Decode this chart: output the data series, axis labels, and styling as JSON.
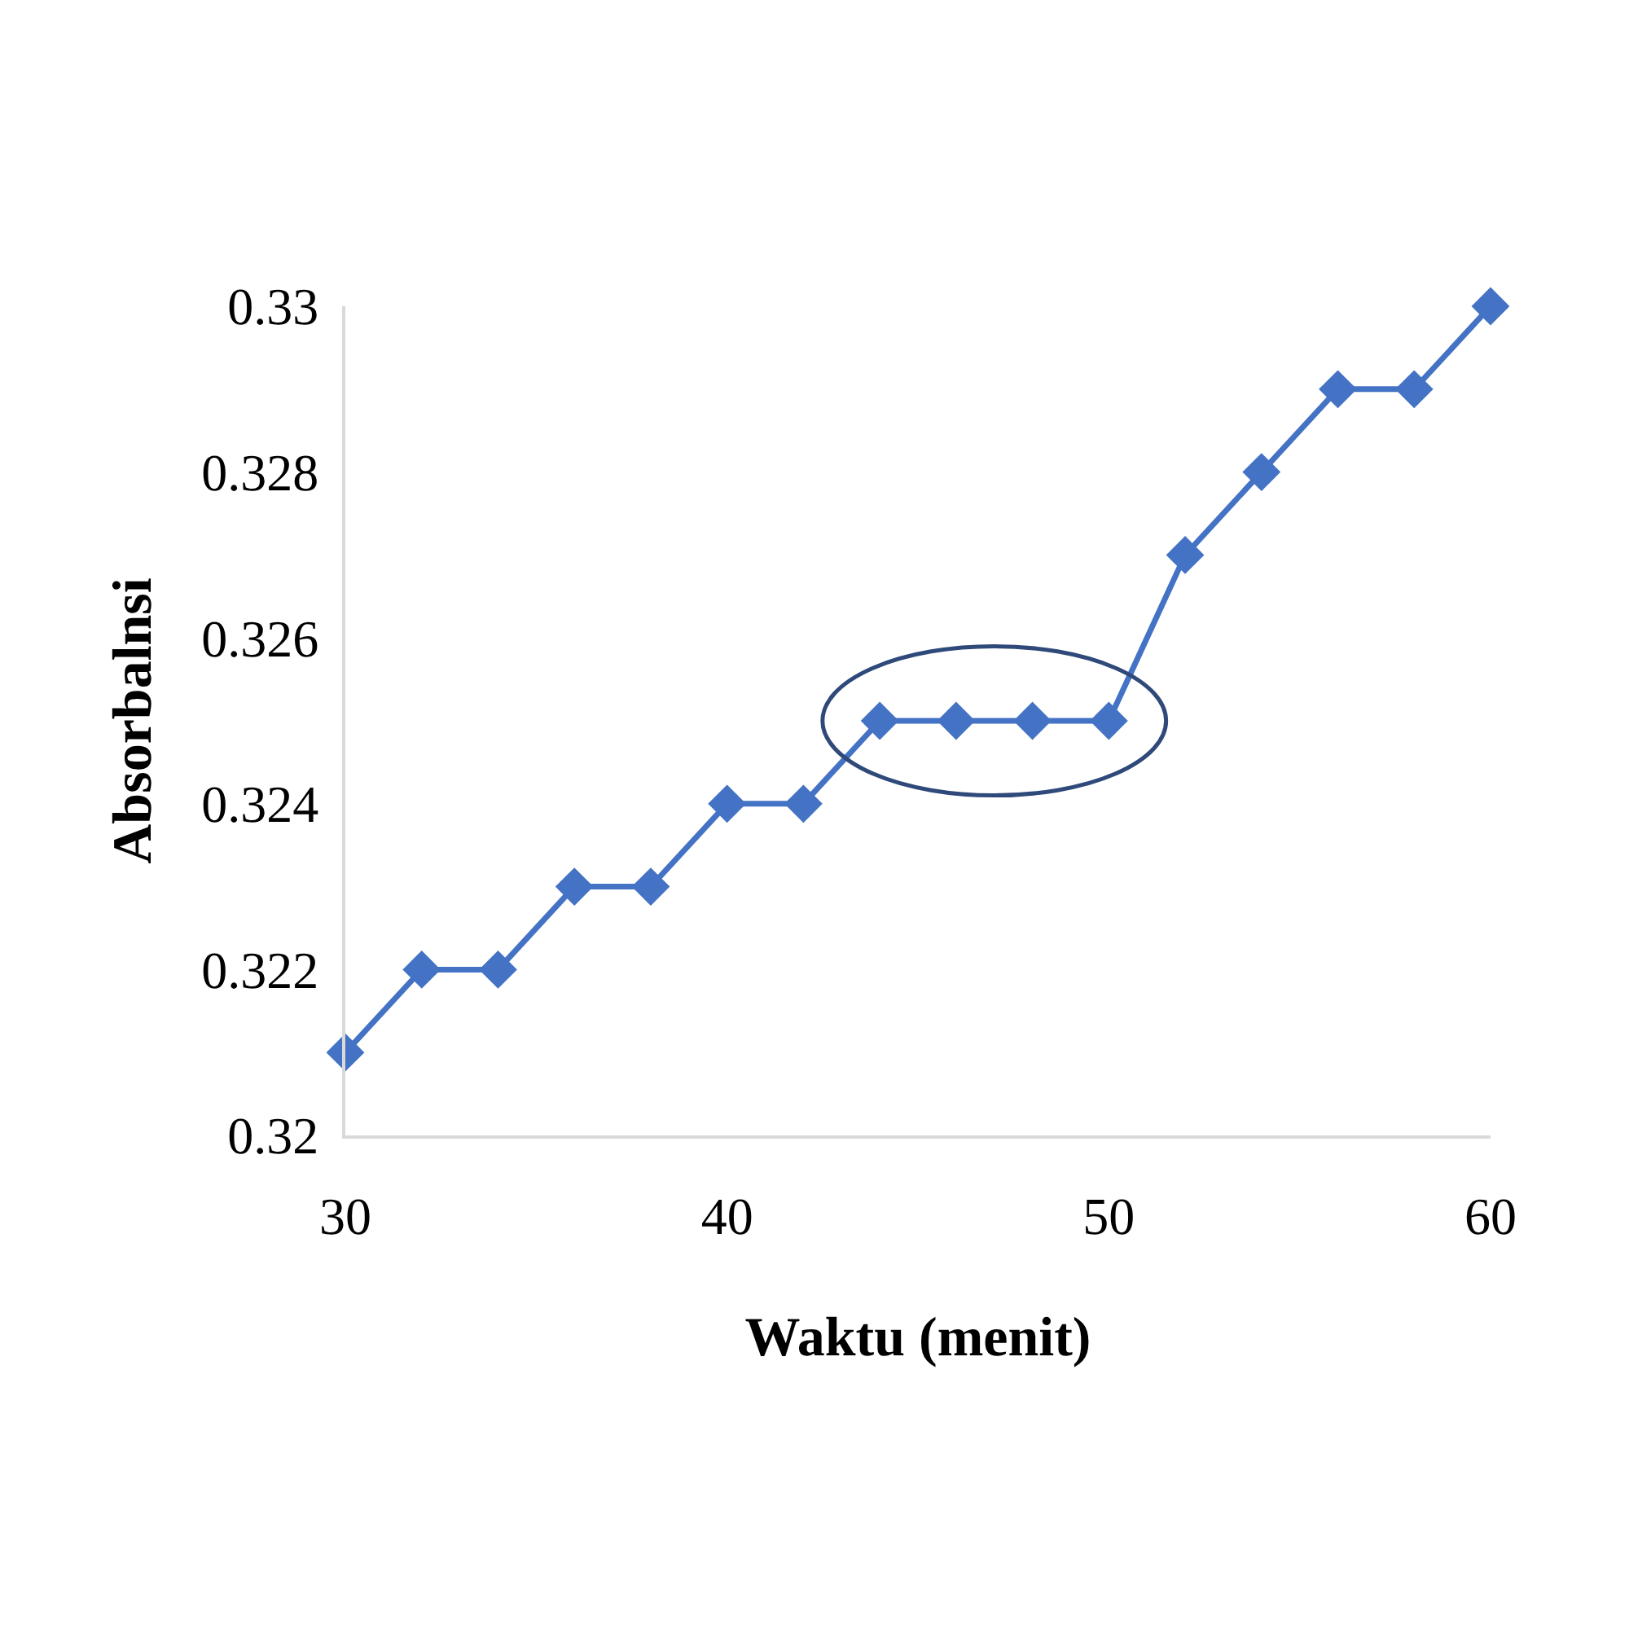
{
  "chart_data": {
    "type": "line",
    "xlabel": "Waktu (menit)",
    "ylabel": "Absorbalnsi",
    "x": [
      30,
      32,
      34,
      36,
      38,
      40,
      42,
      44,
      46,
      48,
      50,
      52,
      54,
      56,
      58,
      60
    ],
    "series": [
      {
        "color": "#4472c4",
        "values": [
          0.321,
          0.322,
          0.322,
          0.323,
          0.323,
          0.324,
          0.324,
          0.325,
          0.325,
          0.325,
          0.325,
          0.327,
          0.328,
          0.329,
          0.329,
          0.33
        ]
      }
    ],
    "xlim": [
      30,
      60
    ],
    "xticks": [
      30,
      40,
      50,
      60
    ],
    "ylim": [
      0.32,
      0.33
    ],
    "yticks": [
      0.32,
      0.322,
      0.324,
      0.326,
      0.328,
      0.33
    ],
    "marker": "diamond",
    "line_style": "solid"
  }
}
